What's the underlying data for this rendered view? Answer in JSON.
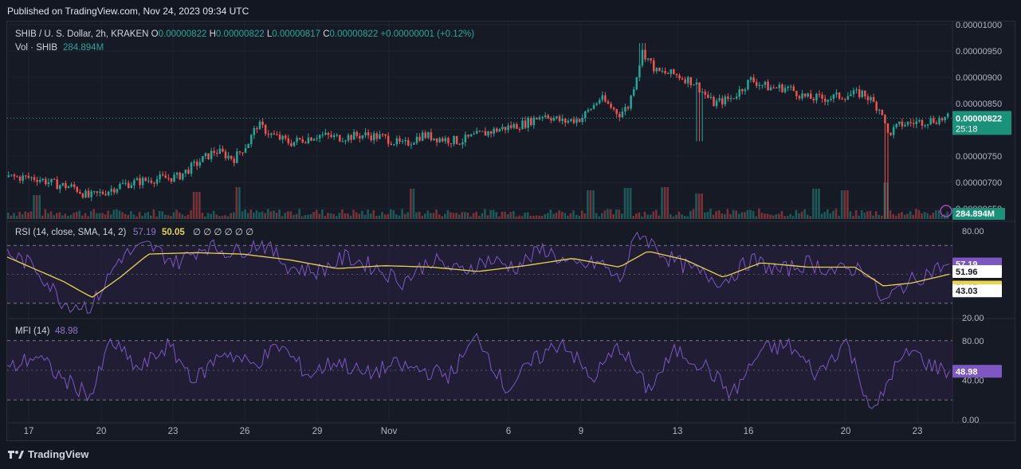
{
  "header": {
    "published": "Published on TradingView.com, Nov 24, 2023 09:34 UTC"
  },
  "footer": {
    "brand": "TradingView"
  },
  "colors": {
    "background": "#131722",
    "grid": "#1f2330",
    "up": "#26a69a",
    "down": "#ef5350",
    "rsi_line": "#7e57c2",
    "rsi_ma": "#e8d54f",
    "mfi_line": "#7e57c2",
    "price_badge": "#1b9179",
    "band_fill": "#2a2143"
  },
  "chart_data": [
    {
      "type": "candlestick",
      "pane": "price",
      "legend": {
        "symbol": "SHIB / U. S. Dollar, 2h, KRAKEN",
        "o_label": "O",
        "o_value": "0.00000822",
        "h_label": "H",
        "h_value": "0.00000822",
        "l_label": "L",
        "l_value": "0.00000817",
        "c_label": "C",
        "c_value": "0.00000822",
        "change": "+0.00000001 (+0.12%)",
        "vol_label": "Vol · SHIB",
        "vol_value": "284.894M"
      },
      "y_ticks": [
        "0.00001000",
        "0.00000950",
        "0.00000900",
        "0.00000850",
        "0.00000800",
        "0.00000750",
        "0.00000700",
        "0.00000650"
      ],
      "ylim": [
        6.3e-06,
        1e-05
      ],
      "last_price": "0.00000822",
      "countdown": "25:18",
      "volume_badge": "284.894M",
      "x_ticks": [
        "17",
        "20",
        "23",
        "26",
        "29",
        "Nov",
        "6",
        "9",
        "13",
        "16",
        "20",
        "23"
      ],
      "close_path": [
        [
          0,
          7.1e-06
        ],
        [
          0.03,
          7.08e-06
        ],
        [
          0.05,
          6.96e-06
        ],
        [
          0.07,
          6.9e-06
        ],
        [
          0.085,
          6.72e-06
        ],
        [
          0.1,
          6.8e-06
        ],
        [
          0.12,
          6.95e-06
        ],
        [
          0.15,
          7.05e-06
        ],
        [
          0.18,
          7.1e-06
        ],
        [
          0.2,
          7.35e-06
        ],
        [
          0.22,
          7.6e-06
        ],
        [
          0.24,
          7.45e-06
        ],
        [
          0.255,
          7.75e-06
        ],
        [
          0.265,
          8.1e-06
        ],
        [
          0.28,
          7.9e-06
        ],
        [
          0.3,
          7.75e-06
        ],
        [
          0.33,
          7.9e-06
        ],
        [
          0.35,
          7.85e-06
        ],
        [
          0.38,
          7.9e-06
        ],
        [
          0.4,
          7.85e-06
        ],
        [
          0.42,
          7.7e-06
        ],
        [
          0.44,
          7.9e-06
        ],
        [
          0.46,
          7.83e-06
        ],
        [
          0.48,
          7.78e-06
        ],
        [
          0.5,
          7.9e-06
        ],
        [
          0.52,
          8e-06
        ],
        [
          0.55,
          8.12e-06
        ],
        [
          0.57,
          8.3e-06
        ],
        [
          0.59,
          8.15e-06
        ],
        [
          0.61,
          8.22e-06
        ],
        [
          0.63,
          8.6e-06
        ],
        [
          0.65,
          8.3e-06
        ],
        [
          0.66,
          8.45e-06
        ],
        [
          0.675,
          9.5e-06
        ],
        [
          0.69,
          9.1e-06
        ],
        [
          0.71,
          9.05e-06
        ],
        [
          0.73,
          8.9e-06
        ],
        [
          0.75,
          8.5e-06
        ],
        [
          0.77,
          8.6e-06
        ],
        [
          0.79,
          8.95e-06
        ],
        [
          0.81,
          8.8e-06
        ],
        [
          0.83,
          8.8e-06
        ],
        [
          0.85,
          8.6e-06
        ],
        [
          0.87,
          8.6e-06
        ],
        [
          0.89,
          8.65e-06
        ],
        [
          0.91,
          8.7e-06
        ],
        [
          0.93,
          8.35e-06
        ],
        [
          0.935,
          7.9e-06
        ],
        [
          0.95,
          8.1e-06
        ],
        [
          0.97,
          8.15e-06
        ],
        [
          1.0,
          8.22e-06
        ]
      ],
      "volume_spikes": [
        [
          0.03,
          0.5
        ],
        [
          0.2,
          0.7
        ],
        [
          0.245,
          1.0
        ],
        [
          0.43,
          0.9
        ],
        [
          0.62,
          0.8
        ],
        [
          0.66,
          0.95
        ],
        [
          0.7,
          1.0
        ],
        [
          0.735,
          0.6
        ],
        [
          0.86,
          0.9
        ],
        [
          0.89,
          0.8
        ],
        [
          0.935,
          1.3
        ]
      ]
    },
    {
      "type": "line",
      "pane": "rsi",
      "legend": {
        "title": "RSI (14, close, SMA, 14, 2)",
        "value": "57.19",
        "ma_value": "50.05",
        "extras": "∅ ∅ ∅ ∅ ∅ ∅"
      },
      "y_ticks": [
        "80.00",
        "20.00"
      ],
      "ylim": [
        20,
        85
      ],
      "bands": [
        70,
        30
      ],
      "labels": {
        "rsi": "57.19",
        "upper_band": "51.96",
        "ma": "50.05",
        "lower_band": "43.03"
      },
      "rsi_path": [
        [
          0,
          65
        ],
        [
          0.03,
          55
        ],
        [
          0.06,
          30
        ],
        [
          0.09,
          28
        ],
        [
          0.12,
          62
        ],
        [
          0.15,
          70
        ],
        [
          0.18,
          58
        ],
        [
          0.21,
          70
        ],
        [
          0.24,
          65
        ],
        [
          0.27,
          72
        ],
        [
          0.3,
          55
        ],
        [
          0.33,
          52
        ],
        [
          0.36,
          62
        ],
        [
          0.39,
          55
        ],
        [
          0.42,
          45
        ],
        [
          0.45,
          60
        ],
        [
          0.48,
          52
        ],
        [
          0.51,
          60
        ],
        [
          0.54,
          55
        ],
        [
          0.57,
          68
        ],
        [
          0.6,
          55
        ],
        [
          0.63,
          58
        ],
        [
          0.65,
          45
        ],
        [
          0.67,
          80
        ],
        [
          0.7,
          62
        ],
        [
          0.73,
          52
        ],
        [
          0.76,
          45
        ],
        [
          0.79,
          60
        ],
        [
          0.82,
          52
        ],
        [
          0.85,
          58
        ],
        [
          0.88,
          52
        ],
        [
          0.91,
          55
        ],
        [
          0.93,
          30
        ],
        [
          0.95,
          42
        ],
        [
          0.98,
          52
        ],
        [
          1.0,
          57.19
        ]
      ],
      "ma_path": [
        [
          0,
          62
        ],
        [
          0.06,
          45
        ],
        [
          0.09,
          34
        ],
        [
          0.12,
          48
        ],
        [
          0.15,
          64
        ],
        [
          0.2,
          65
        ],
        [
          0.25,
          64
        ],
        [
          0.3,
          60
        ],
        [
          0.35,
          54
        ],
        [
          0.4,
          56
        ],
        [
          0.45,
          55
        ],
        [
          0.5,
          52
        ],
        [
          0.55,
          56
        ],
        [
          0.6,
          61
        ],
        [
          0.65,
          55
        ],
        [
          0.68,
          66
        ],
        [
          0.72,
          60
        ],
        [
          0.76,
          48
        ],
        [
          0.8,
          58
        ],
        [
          0.85,
          55
        ],
        [
          0.9,
          55
        ],
        [
          0.93,
          42
        ],
        [
          0.96,
          44
        ],
        [
          1.0,
          50.05
        ]
      ]
    },
    {
      "type": "line",
      "pane": "mfi",
      "legend": {
        "title": "MFI (14)",
        "value": "48.98"
      },
      "y_ticks": [
        "80.00",
        "40.00",
        "0.00"
      ],
      "ylim": [
        0,
        100
      ],
      "bands": [
        80,
        20
      ],
      "last_value": "48.98",
      "mfi_path": [
        [
          0,
          50
        ],
        [
          0.03,
          65
        ],
        [
          0.06,
          40
        ],
        [
          0.09,
          25
        ],
        [
          0.11,
          80
        ],
        [
          0.14,
          50
        ],
        [
          0.17,
          75
        ],
        [
          0.2,
          40
        ],
        [
          0.23,
          70
        ],
        [
          0.26,
          55
        ],
        [
          0.29,
          75
        ],
        [
          0.32,
          45
        ],
        [
          0.35,
          60
        ],
        [
          0.38,
          45
        ],
        [
          0.41,
          55
        ],
        [
          0.44,
          50
        ],
        [
          0.47,
          45
        ],
        [
          0.5,
          85
        ],
        [
          0.53,
          30
        ],
        [
          0.56,
          60
        ],
        [
          0.59,
          80
        ],
        [
          0.62,
          40
        ],
        [
          0.65,
          75
        ],
        [
          0.68,
          30
        ],
        [
          0.71,
          70
        ],
        [
          0.74,
          55
        ],
        [
          0.77,
          25
        ],
        [
          0.8,
          70
        ],
        [
          0.83,
          75
        ],
        [
          0.86,
          45
        ],
        [
          0.89,
          80
        ],
        [
          0.92,
          5
        ],
        [
          0.94,
          50
        ],
        [
          0.96,
          70
        ],
        [
          0.98,
          55
        ],
        [
          1.0,
          48.98
        ]
      ]
    }
  ]
}
